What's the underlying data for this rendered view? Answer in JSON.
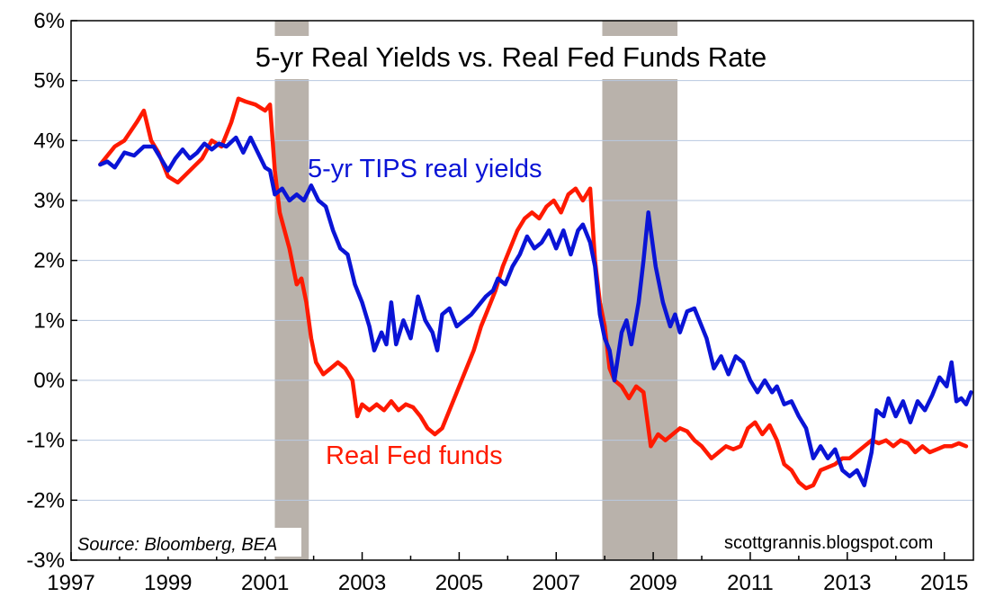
{
  "chart_data": {
    "type": "line",
    "title": "5-yr Real Yields vs. Real Fed Funds Rate",
    "xlabel": "",
    "ylabel": "",
    "xlim": [
      1997.0,
      2015.6
    ],
    "ylim": [
      -3,
      6
    ],
    "x_ticks": [
      1997,
      1999,
      2001,
      2003,
      2005,
      2007,
      2009,
      2011,
      2013,
      2015
    ],
    "x_tick_labels": [
      "1997",
      "1999",
      "2001",
      "2003",
      "2005",
      "2007",
      "2009",
      "2011",
      "2013",
      "2015"
    ],
    "y_ticks": [
      6,
      5,
      4,
      3,
      2,
      1,
      0,
      -1,
      -2,
      -3
    ],
    "y_tick_labels": [
      "6%",
      "5%",
      "4%",
      "3%",
      "2%",
      "1%",
      "0%",
      "-1%",
      "-2%",
      "-3%"
    ],
    "grid": "horizontal",
    "recessions": [
      [
        2001.2,
        2001.9
      ],
      [
        2007.95,
        2009.5
      ]
    ],
    "annotations": {
      "source": "Source: Bloomberg, BEA",
      "website": "scottgrannis.blogspot.com"
    },
    "series": [
      {
        "name": "5-yr TIPS real yields",
        "color": "#0a14d6",
        "points": [
          [
            1997.6,
            3.6
          ],
          [
            1997.75,
            3.65
          ],
          [
            1997.9,
            3.55
          ],
          [
            1998.1,
            3.8
          ],
          [
            1998.3,
            3.75
          ],
          [
            1998.5,
            3.9
          ],
          [
            1998.7,
            3.9
          ],
          [
            1998.85,
            3.7
          ],
          [
            1999.0,
            3.5
          ],
          [
            1999.15,
            3.7
          ],
          [
            1999.3,
            3.85
          ],
          [
            1999.45,
            3.7
          ],
          [
            1999.6,
            3.8
          ],
          [
            1999.75,
            3.95
          ],
          [
            1999.9,
            3.85
          ],
          [
            2000.05,
            3.95
          ],
          [
            2000.2,
            3.9
          ],
          [
            2000.4,
            4.05
          ],
          [
            2000.55,
            3.8
          ],
          [
            2000.7,
            4.05
          ],
          [
            2000.85,
            3.8
          ],
          [
            2001.0,
            3.55
          ],
          [
            2001.1,
            3.5
          ],
          [
            2001.2,
            3.1
          ],
          [
            2001.35,
            3.2
          ],
          [
            2001.5,
            3.0
          ],
          [
            2001.65,
            3.1
          ],
          [
            2001.8,
            3.0
          ],
          [
            2001.95,
            3.25
          ],
          [
            2002.1,
            3.0
          ],
          [
            2002.25,
            2.9
          ],
          [
            2002.4,
            2.5
          ],
          [
            2002.55,
            2.2
          ],
          [
            2002.7,
            2.1
          ],
          [
            2002.85,
            1.6
          ],
          [
            2003.0,
            1.3
          ],
          [
            2003.15,
            0.9
          ],
          [
            2003.25,
            0.5
          ],
          [
            2003.4,
            0.8
          ],
          [
            2003.5,
            0.6
          ],
          [
            2003.6,
            1.3
          ],
          [
            2003.7,
            0.6
          ],
          [
            2003.85,
            1.0
          ],
          [
            2004.0,
            0.7
          ],
          [
            2004.15,
            1.4
          ],
          [
            2004.3,
            1.0
          ],
          [
            2004.45,
            0.8
          ],
          [
            2004.55,
            0.5
          ],
          [
            2004.65,
            1.1
          ],
          [
            2004.8,
            1.2
          ],
          [
            2004.95,
            0.9
          ],
          [
            2005.1,
            1.0
          ],
          [
            2005.25,
            1.1
          ],
          [
            2005.4,
            1.25
          ],
          [
            2005.55,
            1.4
          ],
          [
            2005.7,
            1.5
          ],
          [
            2005.8,
            1.7
          ],
          [
            2005.95,
            1.6
          ],
          [
            2006.1,
            1.9
          ],
          [
            2006.25,
            2.1
          ],
          [
            2006.4,
            2.4
          ],
          [
            2006.55,
            2.2
          ],
          [
            2006.7,
            2.3
          ],
          [
            2006.85,
            2.5
          ],
          [
            2007.0,
            2.2
          ],
          [
            2007.15,
            2.5
          ],
          [
            2007.3,
            2.1
          ],
          [
            2007.45,
            2.5
          ],
          [
            2007.55,
            2.6
          ],
          [
            2007.7,
            2.3
          ],
          [
            2007.8,
            1.9
          ],
          [
            2007.9,
            1.1
          ],
          [
            2008.0,
            0.7
          ],
          [
            2008.1,
            0.5
          ],
          [
            2008.2,
            0.0
          ],
          [
            2008.35,
            0.8
          ],
          [
            2008.45,
            1.0
          ],
          [
            2008.55,
            0.6
          ],
          [
            2008.7,
            1.3
          ],
          [
            2008.8,
            2.0
          ],
          [
            2008.9,
            2.8
          ],
          [
            2009.05,
            1.9
          ],
          [
            2009.2,
            1.3
          ],
          [
            2009.35,
            0.9
          ],
          [
            2009.45,
            1.1
          ],
          [
            2009.55,
            0.8
          ],
          [
            2009.7,
            1.15
          ],
          [
            2009.85,
            1.2
          ],
          [
            2009.95,
            1.0
          ],
          [
            2010.1,
            0.7
          ],
          [
            2010.25,
            0.2
          ],
          [
            2010.4,
            0.4
          ],
          [
            2010.55,
            0.1
          ],
          [
            2010.7,
            0.4
          ],
          [
            2010.85,
            0.3
          ],
          [
            2011.0,
            0.0
          ],
          [
            2011.15,
            -0.2
          ],
          [
            2011.3,
            0.0
          ],
          [
            2011.45,
            -0.2
          ],
          [
            2011.55,
            -0.1
          ],
          [
            2011.7,
            -0.4
          ],
          [
            2011.85,
            -0.35
          ],
          [
            2012.0,
            -0.6
          ],
          [
            2012.15,
            -0.8
          ],
          [
            2012.3,
            -1.3
          ],
          [
            2012.45,
            -1.1
          ],
          [
            2012.6,
            -1.3
          ],
          [
            2012.75,
            -1.15
          ],
          [
            2012.9,
            -1.5
          ],
          [
            2013.05,
            -1.6
          ],
          [
            2013.2,
            -1.5
          ],
          [
            2013.35,
            -1.75
          ],
          [
            2013.5,
            -1.2
          ],
          [
            2013.6,
            -0.5
          ],
          [
            2013.75,
            -0.6
          ],
          [
            2013.85,
            -0.3
          ],
          [
            2014.0,
            -0.6
          ],
          [
            2014.15,
            -0.35
          ],
          [
            2014.3,
            -0.7
          ],
          [
            2014.45,
            -0.35
          ],
          [
            2014.6,
            -0.5
          ],
          [
            2014.75,
            -0.25
          ],
          [
            2014.9,
            0.05
          ],
          [
            2015.05,
            -0.1
          ],
          [
            2015.15,
            0.3
          ],
          [
            2015.25,
            -0.35
          ],
          [
            2015.35,
            -0.3
          ],
          [
            2015.45,
            -0.4
          ],
          [
            2015.55,
            -0.2
          ]
        ]
      },
      {
        "name": "Real Fed funds",
        "color": "#ff1a00",
        "points": [
          [
            1997.6,
            3.6
          ],
          [
            1997.9,
            3.9
          ],
          [
            1998.1,
            4.0
          ],
          [
            1998.35,
            4.3
          ],
          [
            1998.5,
            4.5
          ],
          [
            1998.65,
            4.0
          ],
          [
            1998.8,
            3.8
          ],
          [
            1999.0,
            3.4
          ],
          [
            1999.2,
            3.3
          ],
          [
            1999.45,
            3.5
          ],
          [
            1999.7,
            3.7
          ],
          [
            1999.9,
            4.0
          ],
          [
            2000.1,
            3.9
          ],
          [
            2000.3,
            4.3
          ],
          [
            2000.45,
            4.7
          ],
          [
            2000.6,
            4.65
          ],
          [
            2000.8,
            4.6
          ],
          [
            2001.0,
            4.5
          ],
          [
            2001.1,
            4.6
          ],
          [
            2001.2,
            3.5
          ],
          [
            2001.3,
            2.8
          ],
          [
            2001.5,
            2.2
          ],
          [
            2001.65,
            1.6
          ],
          [
            2001.75,
            1.7
          ],
          [
            2001.85,
            1.3
          ],
          [
            2001.95,
            0.7
          ],
          [
            2002.05,
            0.3
          ],
          [
            2002.2,
            0.1
          ],
          [
            2002.35,
            0.2
          ],
          [
            2002.5,
            0.3
          ],
          [
            2002.65,
            0.2
          ],
          [
            2002.8,
            0.0
          ],
          [
            2002.9,
            -0.6
          ],
          [
            2003.0,
            -0.4
          ],
          [
            2003.15,
            -0.5
          ],
          [
            2003.3,
            -0.4
          ],
          [
            2003.45,
            -0.5
          ],
          [
            2003.6,
            -0.35
          ],
          [
            2003.75,
            -0.5
          ],
          [
            2003.9,
            -0.4
          ],
          [
            2004.05,
            -0.45
          ],
          [
            2004.2,
            -0.6
          ],
          [
            2004.35,
            -0.8
          ],
          [
            2004.5,
            -0.9
          ],
          [
            2004.65,
            -0.8
          ],
          [
            2004.8,
            -0.5
          ],
          [
            2005.0,
            -0.1
          ],
          [
            2005.15,
            0.2
          ],
          [
            2005.3,
            0.5
          ],
          [
            2005.45,
            0.9
          ],
          [
            2005.6,
            1.2
          ],
          [
            2005.75,
            1.5
          ],
          [
            2005.9,
            1.9
          ],
          [
            2006.05,
            2.2
          ],
          [
            2006.2,
            2.5
          ],
          [
            2006.35,
            2.7
          ],
          [
            2006.5,
            2.8
          ],
          [
            2006.65,
            2.7
          ],
          [
            2006.8,
            2.9
          ],
          [
            2006.95,
            3.0
          ],
          [
            2007.1,
            2.8
          ],
          [
            2007.25,
            3.1
          ],
          [
            2007.4,
            3.2
          ],
          [
            2007.55,
            3.0
          ],
          [
            2007.7,
            3.2
          ],
          [
            2007.8,
            2.0
          ],
          [
            2007.9,
            1.3
          ],
          [
            2008.0,
            0.9
          ],
          [
            2008.1,
            0.2
          ],
          [
            2008.2,
            0.0
          ],
          [
            2008.35,
            -0.1
          ],
          [
            2008.5,
            -0.3
          ],
          [
            2008.65,
            -0.1
          ],
          [
            2008.8,
            -0.2
          ],
          [
            2008.95,
            -1.1
          ],
          [
            2009.1,
            -0.9
          ],
          [
            2009.25,
            -1.0
          ],
          [
            2009.4,
            -0.9
          ],
          [
            2009.55,
            -0.8
          ],
          [
            2009.7,
            -0.85
          ],
          [
            2009.85,
            -1.0
          ],
          [
            2010.0,
            -1.1
          ],
          [
            2010.2,
            -1.3
          ],
          [
            2010.35,
            -1.2
          ],
          [
            2010.5,
            -1.1
          ],
          [
            2010.65,
            -1.15
          ],
          [
            2010.8,
            -1.1
          ],
          [
            2010.95,
            -0.8
          ],
          [
            2011.1,
            -0.7
          ],
          [
            2011.25,
            -0.9
          ],
          [
            2011.4,
            -0.75
          ],
          [
            2011.55,
            -1.0
          ],
          [
            2011.7,
            -1.4
          ],
          [
            2011.85,
            -1.5
          ],
          [
            2012.0,
            -1.7
          ],
          [
            2012.15,
            -1.8
          ],
          [
            2012.3,
            -1.75
          ],
          [
            2012.45,
            -1.5
          ],
          [
            2012.6,
            -1.45
          ],
          [
            2012.75,
            -1.4
          ],
          [
            2012.9,
            -1.3
          ],
          [
            2013.05,
            -1.3
          ],
          [
            2013.2,
            -1.2
          ],
          [
            2013.35,
            -1.1
          ],
          [
            2013.5,
            -1.0
          ],
          [
            2013.65,
            -1.05
          ],
          [
            2013.8,
            -1.0
          ],
          [
            2013.95,
            -1.1
          ],
          [
            2014.1,
            -1.0
          ],
          [
            2014.25,
            -1.05
          ],
          [
            2014.4,
            -1.2
          ],
          [
            2014.55,
            -1.1
          ],
          [
            2014.7,
            -1.2
          ],
          [
            2014.85,
            -1.15
          ],
          [
            2015.0,
            -1.1
          ],
          [
            2015.15,
            -1.1
          ],
          [
            2015.3,
            -1.05
          ],
          [
            2015.45,
            -1.1
          ]
        ]
      }
    ]
  }
}
